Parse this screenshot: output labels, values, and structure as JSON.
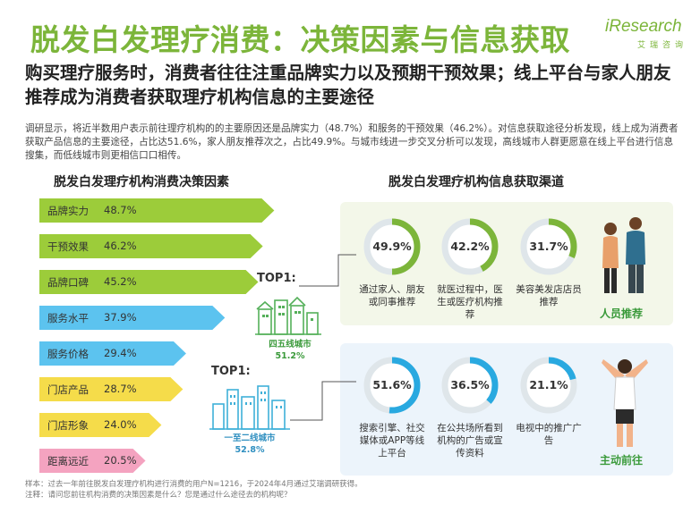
{
  "header": {
    "title": "脱发白发理疗消费：决策因素与信息获取",
    "logo_text": "iResearch",
    "logo_sub": "艾瑞咨询",
    "subtitle": "购买理疗服务时，消费者往往注重品牌实力以及预期干预效果；线上平台与家人朋友推荐成为消费者获取理疗机构信息的主要途径",
    "description": "调研显示，将近半数用户表示前往理疗机构的的主要原因还是品牌实力（48.7%）和服务的干预效果（46.2%）。对信息获取途径分析发现，线上成为消费者获取产品信息的主要途径，占比达51.6%，家人朋友推荐次之，占比49.9%。与城市线进一步交叉分析可以发现，高线城市人群更愿意在线上平台进行信息搜集，而低线城市则更相信口口相传。"
  },
  "colors": {
    "brand_green": "#7cb53a",
    "circle_blue": "#29a9e0",
    "city_green": "#55b05a",
    "city_blue": "#3fb0d8",
    "badge_green": "#3a9a3a"
  },
  "chart_data": [
    {
      "type": "bar",
      "title": "脱发白发理疗机构消费决策因素",
      "categories": [
        "品牌实力",
        "干预效果",
        "品牌口碑",
        "服务水平",
        "服务价格",
        "门店产品",
        "门店形象",
        "距离远近"
      ],
      "values": [
        48.7,
        46.2,
        45.2,
        37.9,
        29.4,
        28.7,
        24.0,
        20.5
      ],
      "value_labels": [
        "48.7%",
        "46.2%",
        "45.2%",
        "37.9%",
        "29.4%",
        "28.7%",
        "24.0%",
        "20.5%"
      ],
      "bar_colors": [
        "#9ccc3a",
        "#9ccc3a",
        "#9ccc3a",
        "#5cc3ef",
        "#5cc3ef",
        "#f5dc4a",
        "#f5dc4a",
        "#f4a3c0"
      ]
    },
    {
      "type": "pie",
      "title": "脱发白发理疗机构信息获取渠道",
      "groups": [
        {
          "name": "人员推荐",
          "top_label": "TOP1:",
          "top_tier": "四五线城市",
          "top_tier_value": "51.2%",
          "items": [
            {
              "value": 49.9,
              "label": "49.9%",
              "caption": "通过家人、朋友或同事推荐"
            },
            {
              "value": 42.2,
              "label": "42.2%",
              "caption": "就医过程中，医生或医疗机构推荐"
            },
            {
              "value": 31.7,
              "label": "31.7%",
              "caption": "美容美发店店员推荐"
            }
          ]
        },
        {
          "name": "主动前往",
          "top_label": "TOP1:",
          "top_tier": "一至二线城市",
          "top_tier_value": "52.8%",
          "items": [
            {
              "value": 51.6,
              "label": "51.6%",
              "caption": "搜索引擎、社交媒体或APP等线上平台"
            },
            {
              "value": 36.5,
              "label": "36.5%",
              "caption": "在公共场所看到机构的广告或宣传资料"
            },
            {
              "value": 21.1,
              "label": "21.1%",
              "caption": "电视中的推广广告"
            }
          ]
        }
      ]
    }
  ],
  "footer": {
    "sample": "样本：过去一年前往脱发白发理疗机构进行消费的用户N=1216，于2024年4月通过艾瑞调研获得。",
    "note": "注释：请问您前往机构消费的决策因素是什么？您是通过什么途径去的机构呢？"
  }
}
